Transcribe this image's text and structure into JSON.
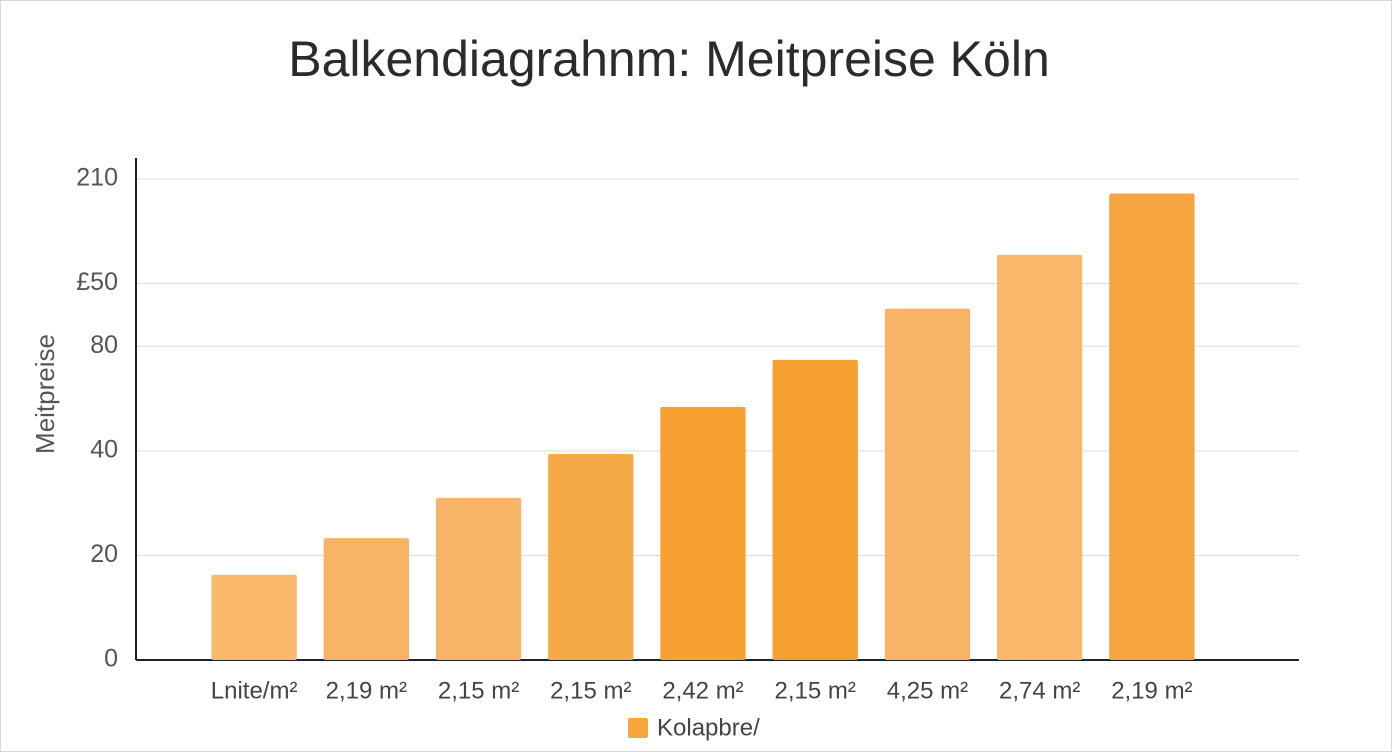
{
  "chart_data": {
    "type": "bar",
    "title": "Balkendiagrahnm: Meitpreise Köln",
    "y_label": "Meitpreise",
    "categories": [
      "Lnite/m²",
      "2,19 m²",
      "2,15 m²",
      "2,15 m²",
      "2,42 m²",
      "2,15 m²",
      "4,25 m²",
      "2,74 m²",
      "2,19 m²"
    ],
    "series": [
      {
        "name": "Kolapbre/",
        "color": "#f6a53c",
        "colors": [
          "#f9b86a",
          "#f8b464",
          "#f8b466",
          "#f5a947",
          "#f6a131",
          "#f5a031",
          "#f8b466",
          "#f9b86a",
          "#f5a440"
        ],
        "values": [
          16.3,
          23.3,
          31,
          39.4,
          48.4,
          57.4,
          67.2,
          77.5,
          89.2
        ]
      }
    ],
    "ylim": [
      0,
      96
    ],
    "yticks": [
      0,
      20,
      40,
      {
        "value": 60,
        "label": "80"
      },
      {
        "value": 72,
        "label": "£50"
      },
      {
        "value": 92,
        "label": "210"
      }
    ],
    "grid": true,
    "legend": "bottom"
  }
}
